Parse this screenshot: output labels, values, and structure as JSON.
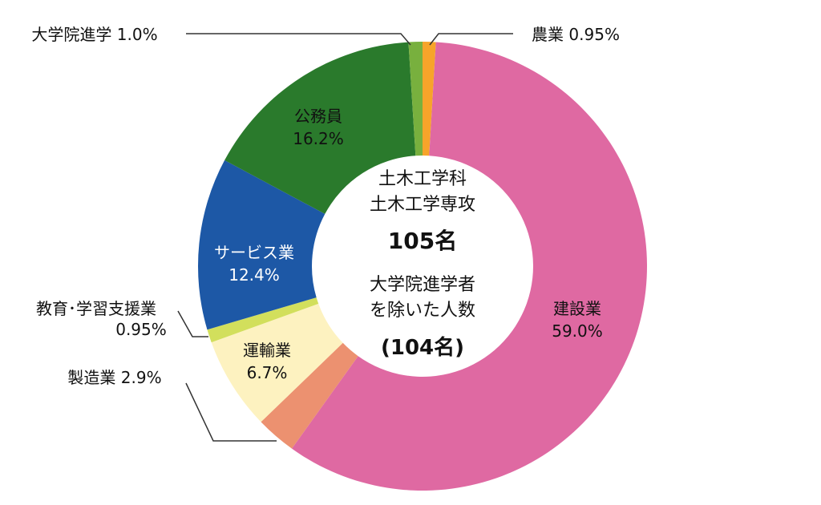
{
  "chart_data": {
    "type": "pie",
    "donut": true,
    "start": "top",
    "direction": "clockwise",
    "center_text": {
      "line1": "土木工学科",
      "line2": "土木工学専攻",
      "total": "105名",
      "line3": "大学院進学者",
      "line4": "を除いた人数",
      "subtotal": "(104名)"
    },
    "slices": [
      {
        "label": "農業",
        "value": 0.95,
        "display": "0.95%",
        "color": "#f7a42a"
      },
      {
        "label": "建設業",
        "value": 59.0,
        "display": "59.0%",
        "color": "#df69a2"
      },
      {
        "label": "製造業",
        "value": 2.9,
        "display": "2.9%",
        "color": "#ec9170"
      },
      {
        "label": "運輸業",
        "value": 6.7,
        "display": "6.7%",
        "color": "#fdf2c0"
      },
      {
        "label": "教育･学習支援業",
        "value": 0.95,
        "display": "0.95%",
        "color": "#d2df5c"
      },
      {
        "label": "サービス業",
        "value": 12.4,
        "display": "12.4%",
        "color": "#1d58a6"
      },
      {
        "label": "公務員",
        "value": 16.2,
        "display": "16.2%",
        "color": "#2a7a2c"
      },
      {
        "label": "大学院進学",
        "value": 1.0,
        "display": "1.0%",
        "color": "#78b03e"
      }
    ]
  }
}
